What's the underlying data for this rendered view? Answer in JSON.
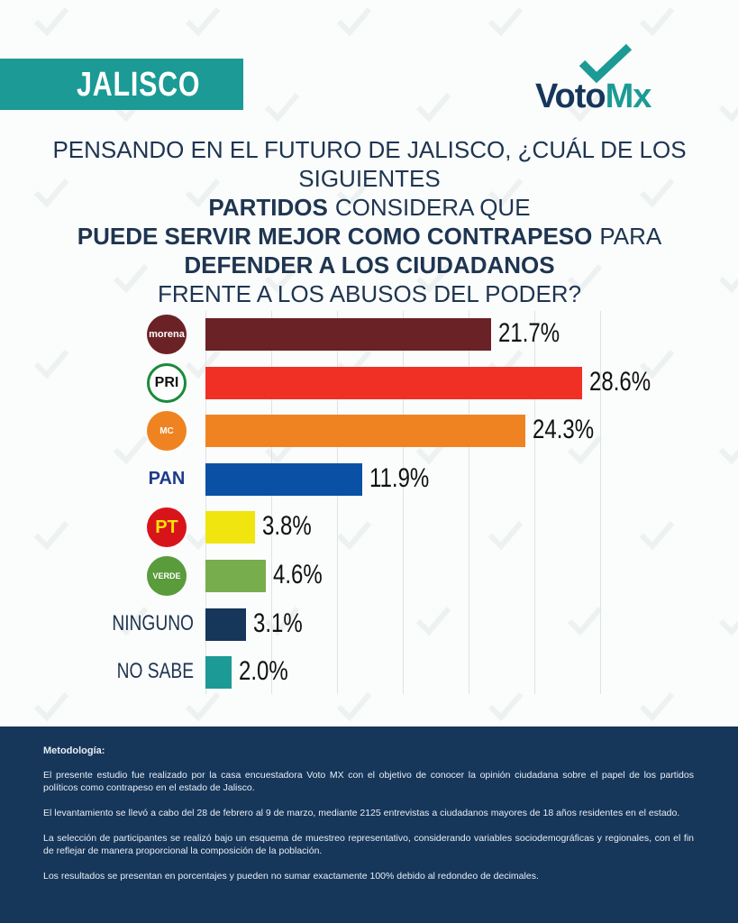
{
  "header": {
    "state": "JALISCO",
    "brand": "VotoMx",
    "brand_a": "Voto",
    "brand_b": "Mx",
    "watermark": "VotoMx"
  },
  "question": {
    "parts": [
      {
        "text": "PENSANDO EN EL FUTURO DE JALISCO, ¿CUÁL DE LOS SIGUIENTES ",
        "bold": false
      },
      {
        "text": "PARTIDOS",
        "bold": true
      },
      {
        "text": " CONSIDERA QUE ",
        "bold": false
      },
      {
        "text": "PUEDE SERVIR MEJOR COMO CONTRAPESO",
        "bold": true
      },
      {
        "text": " PARA ",
        "bold": false
      },
      {
        "text": "DEFENDER A LOS CIUDADANOS",
        "bold": true
      },
      {
        "text": " FRENTE A LOS ABUSOS DEL PODER?",
        "bold": false
      }
    ]
  },
  "chart_data": {
    "type": "bar",
    "orientation": "horizontal",
    "title": "PENSANDO EN EL FUTURO DE JALISCO, ¿CUÁL DE LOS SIGUIENTES PARTIDOS CONSIDERA QUE PUEDE SERVIR MEJOR COMO CONTRAPESO PARA DEFENDER A LOS CIUDADANOS FRENTE A LOS ABUSOS DEL PODER?",
    "categories": [
      "morena",
      "PRI",
      "Movimiento Ciudadano",
      "PAN",
      "PT",
      "VERDE",
      "NINGUNO",
      "NO SABE"
    ],
    "icon_text": [
      "morena",
      "PRI",
      "MC",
      "PAN",
      "PT",
      "VERDE",
      "",
      ""
    ],
    "values": [
      21.7,
      28.6,
      24.3,
      11.9,
      3.8,
      4.6,
      3.1,
      2.0
    ],
    "value_labels": [
      "21.7%",
      "28.6%",
      "24.3%",
      "11.9%",
      "3.8%",
      "4.6%",
      "3.1%",
      "2.0%"
    ],
    "colors": [
      "#6b2226",
      "#f03024",
      "#f08321",
      "#0a51a6",
      "#f0e50e",
      "#77ad4d",
      "#16365a",
      "#1c9a95"
    ],
    "xlim": [
      0,
      30
    ],
    "grid": true,
    "grid_step": 5
  },
  "footer": {
    "heading": "Metodología:",
    "paragraphs": [
      "El presente estudio fue realizado por la casa encuestadora Voto MX con el objetivo de conocer la opinión ciudadana sobre el papel de los partidos políticos como contrapeso en el estado de Jalisco.",
      "El levantamiento se llevó a cabo del 28 de febrero al 9 de marzo, mediante 2125 entrevistas a ciudadanos mayores de 18 años residentes en el estado.",
      "La selección de participantes se realizó bajo un esquema de muestreo representativo, considerando variables sociodemográficas y regionales, con el fin de reflejar de manera proporcional la composición de la población.",
      "Los resultados se presentan en porcentajes y pueden no sumar exactamente 100% debido al redondeo de decimales."
    ]
  }
}
